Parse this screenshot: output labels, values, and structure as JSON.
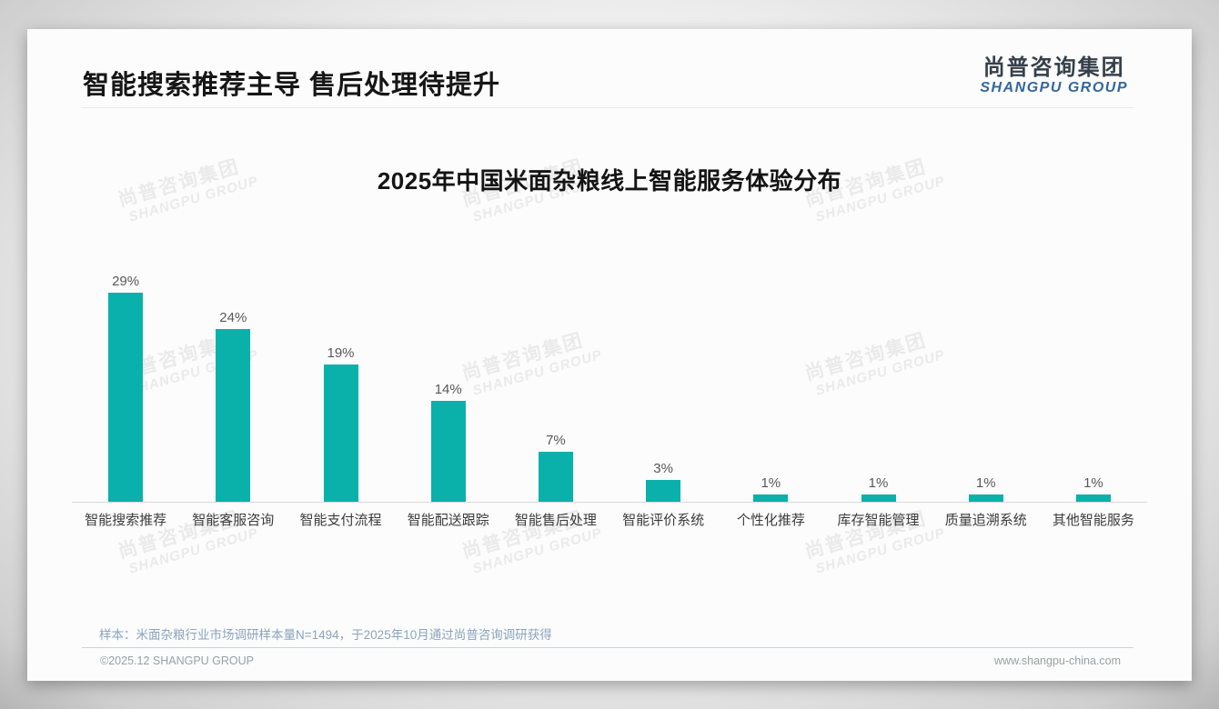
{
  "slide": {
    "title": "智能搜索推荐主导 售后处理待提升",
    "logo": {
      "name_cn": "尚普咨询集团",
      "name_en": "SHANGPU GROUP"
    },
    "watermark": {
      "line_cn": "尚普咨询集团",
      "line_en": "SHANGPU GROUP"
    },
    "note": "样本：米面杂粮行业市场调研样本量N=1494，于2025年10月通过尚普咨询调研获得",
    "footer": {
      "copyright": "©2025.12 SHANGPU GROUP",
      "website": "www.shangpu-china.com"
    }
  },
  "chart_data": {
    "type": "bar",
    "title": "2025年中国米面杂粮线上智能服务体验分布",
    "categories": [
      "智能搜索推荐",
      "智能客服咨询",
      "智能支付流程",
      "智能配送跟踪",
      "智能售后处理",
      "智能评价系统",
      "个性化推荐",
      "库存智能管理",
      "质量追溯系统",
      "其他智能服务"
    ],
    "values": [
      29,
      24,
      19,
      14,
      7,
      3,
      1,
      1,
      1,
      1
    ],
    "value_suffix": "%",
    "xlabel": "",
    "ylabel": "",
    "ylim": [
      0,
      30
    ],
    "grid": false,
    "legend": "none",
    "data_labels": "above-bars",
    "bar_color": "#0ab1ab"
  },
  "colors": {
    "bar": "#0ab1ab",
    "logo_blue": "#32679e",
    "title_text": "#161616",
    "note_text": "#8ba4bc",
    "footer_text": "#9ba0a5"
  }
}
